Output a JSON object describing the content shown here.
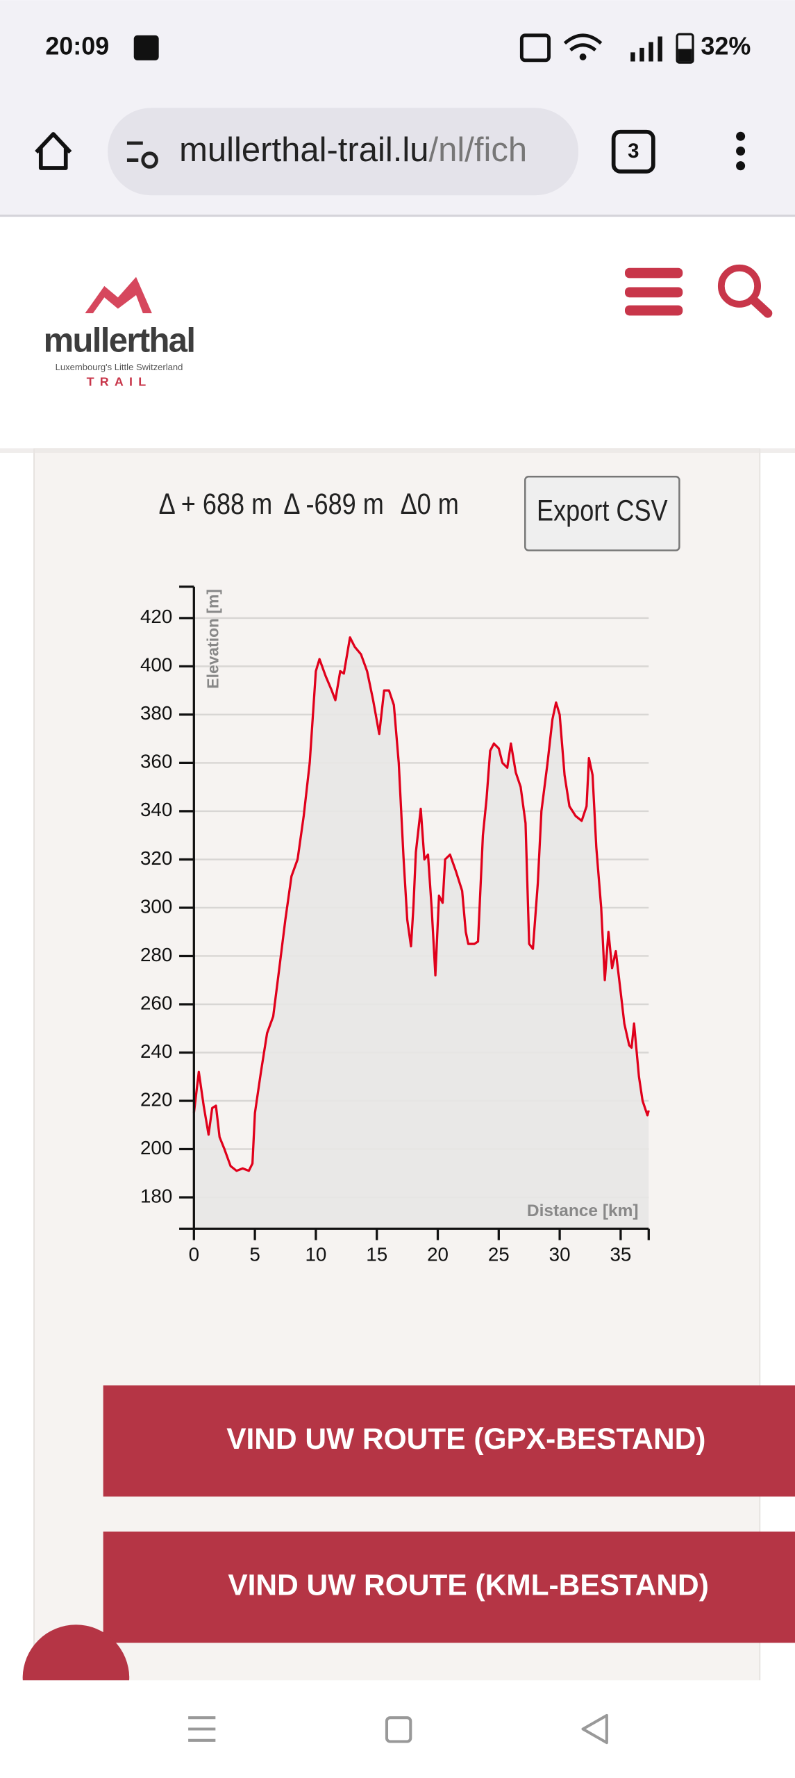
{
  "status_bar": {
    "time": "20:09",
    "battery": "32%"
  },
  "browser": {
    "url_host": "mullerthal-trail.lu",
    "url_path": "/nl/fich",
    "tab_count": "3"
  },
  "header": {
    "logo_name": "mullerthal",
    "logo_tagline": "Luxembourg's Little Switzerland",
    "logo_trail": "TRAIL"
  },
  "stats": {
    "ascent": "Δ + 688 m",
    "descent": "Δ -689 m",
    "net": "Δ0 m",
    "export_button": "Export CSV"
  },
  "chart_data": {
    "type": "line",
    "x_label": "Distance [km]",
    "y_label": "Elevation [m]",
    "color": "#e0001b",
    "area_color": "#e8e7e6",
    "grid": true,
    "xlim": [
      0,
      37.3
    ],
    "ylim": [
      167,
      433
    ],
    "xticks": [
      0,
      5,
      10,
      15,
      20,
      25,
      30,
      35
    ],
    "yticks": [
      180,
      200,
      220,
      240,
      260,
      280,
      300,
      320,
      340,
      360,
      380,
      400,
      420
    ],
    "x": [
      0,
      0.4,
      0.8,
      1.2,
      1.5,
      1.8,
      2.1,
      2.5,
      3,
      3.5,
      4,
      4.5,
      4.8,
      5,
      5.5,
      6,
      6.5,
      7,
      7.5,
      8,
      8.5,
      9,
      9.5,
      10,
      10.3,
      10.8,
      11.3,
      11.6,
      12,
      12.3,
      12.8,
      13.2,
      13.7,
      14.2,
      14.7,
      15.2,
      15.6,
      16,
      16.4,
      16.8,
      17.2,
      17.5,
      17.8,
      18,
      18.2,
      18.6,
      18.9,
      19.2,
      19.5,
      19.8,
      20.1,
      20.4,
      20.6,
      21,
      21.5,
      22,
      22.3,
      22.5,
      23,
      23.3,
      23.7,
      24,
      24.3,
      24.6,
      25,
      25.3,
      25.7,
      26,
      26.4,
      26.8,
      27.2,
      27.5,
      27.8,
      28.2,
      28.5,
      29,
      29.4,
      29.7,
      30,
      30.4,
      30.8,
      31.3,
      31.8,
      32.2,
      32.4,
      32.7,
      33,
      33.4,
      33.7,
      34,
      34.3,
      34.6,
      35,
      35.3,
      35.7,
      35.9,
      36.1,
      36.5,
      36.8,
      37.2,
      37.3
    ],
    "y": [
      215,
      232,
      218,
      206,
      217,
      218,
      205,
      200,
      193,
      191,
      192,
      191,
      194,
      215,
      232,
      248,
      255,
      275,
      295,
      313,
      320,
      338,
      360,
      398,
      403,
      396,
      390,
      386,
      398,
      397,
      412,
      408,
      405,
      398,
      386,
      372,
      390,
      390,
      384,
      360,
      320,
      295,
      284,
      300,
      323,
      341,
      320,
      322,
      300,
      272,
      305,
      302,
      320,
      322,
      315,
      307,
      290,
      285,
      285,
      286,
      330,
      345,
      365,
      368,
      366,
      360,
      358,
      368,
      356,
      350,
      335,
      285,
      283,
      310,
      340,
      360,
      378,
      385,
      380,
      355,
      342,
      338,
      336,
      342,
      362,
      355,
      325,
      300,
      270,
      290,
      275,
      282,
      265,
      252,
      243,
      242,
      252,
      230,
      220,
      214,
      216
    ]
  },
  "buttons": {
    "gpx": "VIND UW ROUTE (GPX-BESTAND)",
    "kml": "VIND UW ROUTE (KML-BESTAND)"
  }
}
